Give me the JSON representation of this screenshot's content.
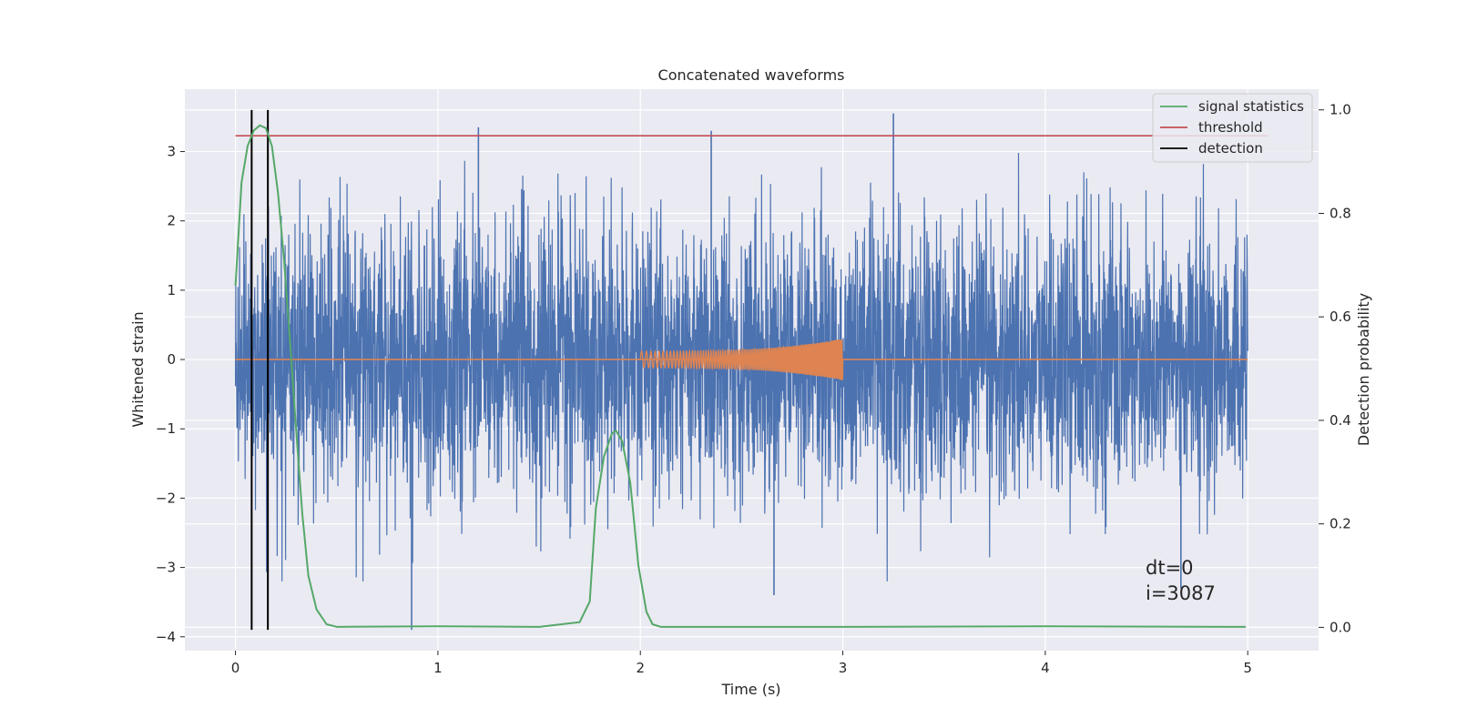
{
  "chart_data": {
    "type": "line",
    "title": "Concatenated waveforms",
    "xlabel": "Time (s)",
    "ylabel": "Whitened strain",
    "y2label": "Detection probability",
    "xlim": [
      -0.25,
      5.35
    ],
    "ylim": [
      -4.2,
      3.9
    ],
    "y2lim": [
      -0.045,
      1.04
    ],
    "xticks": [
      0,
      1,
      2,
      3,
      4,
      5
    ],
    "yticks": [
      -4,
      -3,
      -2,
      -1,
      0,
      1,
      2,
      3
    ],
    "y2ticks": [
      0.0,
      0.2,
      0.4,
      0.6,
      0.8,
      1.0
    ],
    "grid": true,
    "legend_position": "top-right",
    "colors": {
      "strain": "#4c72b0",
      "template": "#dd8452",
      "signal_statistics": "#55a868",
      "threshold": "#c44e52",
      "detection": "#000000",
      "background": "#eaeaf2",
      "grid": "#ffffff"
    },
    "series": [
      {
        "name": "signal statistics",
        "axis": "right",
        "x": [
          0.0,
          0.03,
          0.06,
          0.09,
          0.12,
          0.15,
          0.18,
          0.21,
          0.24,
          0.27,
          0.3,
          0.33,
          0.36,
          0.4,
          0.45,
          0.5,
          1.0,
          1.5,
          1.7,
          1.75,
          1.78,
          1.82,
          1.86,
          1.88,
          1.91,
          1.95,
          1.99,
          2.03,
          2.06,
          2.1,
          3.0,
          4.0,
          4.99
        ],
        "y": [
          0.66,
          0.86,
          0.93,
          0.96,
          0.97,
          0.965,
          0.93,
          0.84,
          0.71,
          0.55,
          0.38,
          0.22,
          0.1,
          0.035,
          0.006,
          0.001,
          0.002,
          0.001,
          0.01,
          0.05,
          0.23,
          0.33,
          0.375,
          0.38,
          0.36,
          0.28,
          0.12,
          0.03,
          0.006,
          0.001,
          0.001,
          0.002,
          0.001
        ]
      },
      {
        "name": "threshold",
        "axis": "right",
        "x": [
          0.0,
          5.1
        ],
        "y": [
          0.95,
          0.95
        ]
      },
      {
        "name": "detection",
        "axis": "left",
        "x": [
          0.08,
          0.16
        ],
        "y_range": [
          -3.9,
          3.6
        ]
      }
    ],
    "strain_noise": {
      "x_range": [
        0.0,
        5.0
      ],
      "center": 0,
      "notable_peaks": [
        {
          "x": 1.2,
          "y": 3.35
        },
        {
          "x": 2.35,
          "y": 3.3
        },
        {
          "x": 3.25,
          "y": 3.55
        },
        {
          "x": 0.87,
          "y": -3.9
        },
        {
          "x": 2.66,
          "y": -3.4
        },
        {
          "x": 4.67,
          "y": -3.3
        }
      ]
    },
    "template_waveform": {
      "x_range": [
        2.0,
        3.0
      ],
      "amplitude_start": 0.12,
      "amplitude_end": 0.3
    },
    "annotations": [
      "dt=0",
      "i=3087"
    ]
  }
}
